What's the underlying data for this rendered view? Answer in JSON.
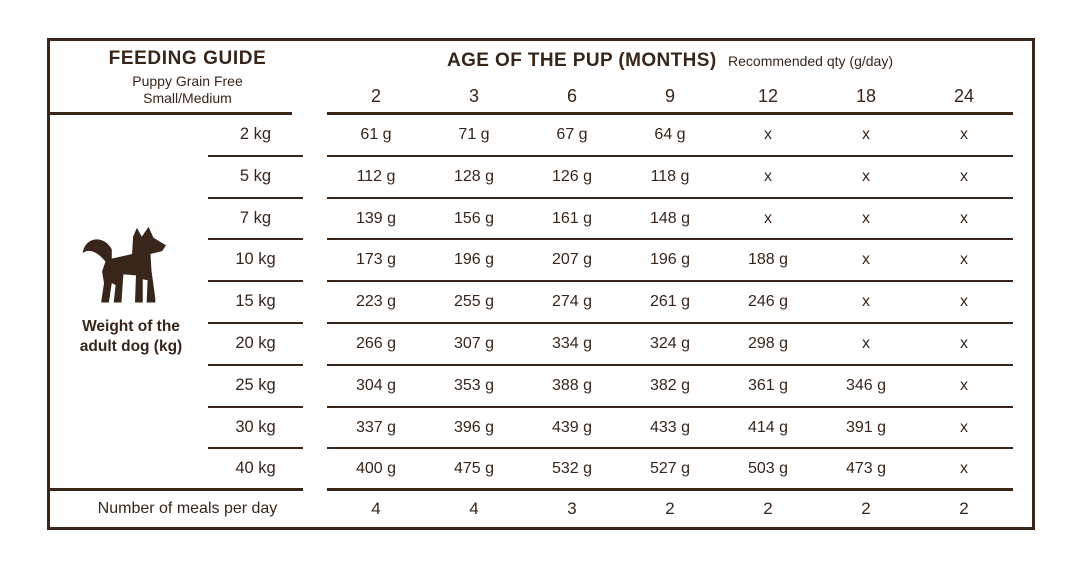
{
  "colors": {
    "ink": "#38261a",
    "background": "#ffffff"
  },
  "header": {
    "title": "FEEDING GUIDE",
    "subtitle_line1": "Puppy Grain Free",
    "subtitle_line2": "Small/Medium",
    "age_title": "AGE OF THE PUP (MONTHS)",
    "age_subtitle": "Recommended qty (g/day)"
  },
  "left_label": {
    "line1": "Weight of the",
    "line2": "adult dog (kg)"
  },
  "icons": {
    "dog": "dog-silhouette-icon"
  },
  "chart_data": {
    "type": "table",
    "title": "FEEDING GUIDE — Puppy Grain Free Small/Medium",
    "columns_label": "AGE OF THE PUP (MONTHS)",
    "unit_note": "Recommended qty (g/day)",
    "columns_months": [
      "2",
      "3",
      "6",
      "9",
      "12",
      "18",
      "24"
    ],
    "row_axis_label": "Weight of the adult dog (kg)",
    "rows": [
      {
        "weight": "2 kg",
        "values": [
          "61 g",
          "71 g",
          "67 g",
          "64 g",
          "x",
          "x",
          "x"
        ]
      },
      {
        "weight": "5 kg",
        "values": [
          "112 g",
          "128 g",
          "126 g",
          "118 g",
          "x",
          "x",
          "x"
        ]
      },
      {
        "weight": "7 kg",
        "values": [
          "139 g",
          "156 g",
          "161 g",
          "148 g",
          "x",
          "x",
          "x"
        ]
      },
      {
        "weight": "10 kg",
        "values": [
          "173 g",
          "196 g",
          "207 g",
          "196 g",
          "188 g",
          "x",
          "x"
        ]
      },
      {
        "weight": "15 kg",
        "values": [
          "223 g",
          "255 g",
          "274 g",
          "261 g",
          "246 g",
          "x",
          "x"
        ]
      },
      {
        "weight": "20 kg",
        "values": [
          "266 g",
          "307 g",
          "334 g",
          "324 g",
          "298 g",
          "x",
          "x"
        ]
      },
      {
        "weight": "25 kg",
        "values": [
          "304 g",
          "353 g",
          "388 g",
          "382 g",
          "361 g",
          "346 g",
          "x"
        ]
      },
      {
        "weight": "30 kg",
        "values": [
          "337 g",
          "396 g",
          "439 g",
          "433 g",
          "414 g",
          "391 g",
          "x"
        ]
      },
      {
        "weight": "40 kg",
        "values": [
          "400 g",
          "475 g",
          "532 g",
          "527 g",
          "503 g",
          "473 g",
          "x"
        ]
      }
    ],
    "meals_row": {
      "label": "Number of meals per day",
      "values": [
        "4",
        "4",
        "3",
        "2",
        "2",
        "2",
        "2"
      ]
    }
  }
}
